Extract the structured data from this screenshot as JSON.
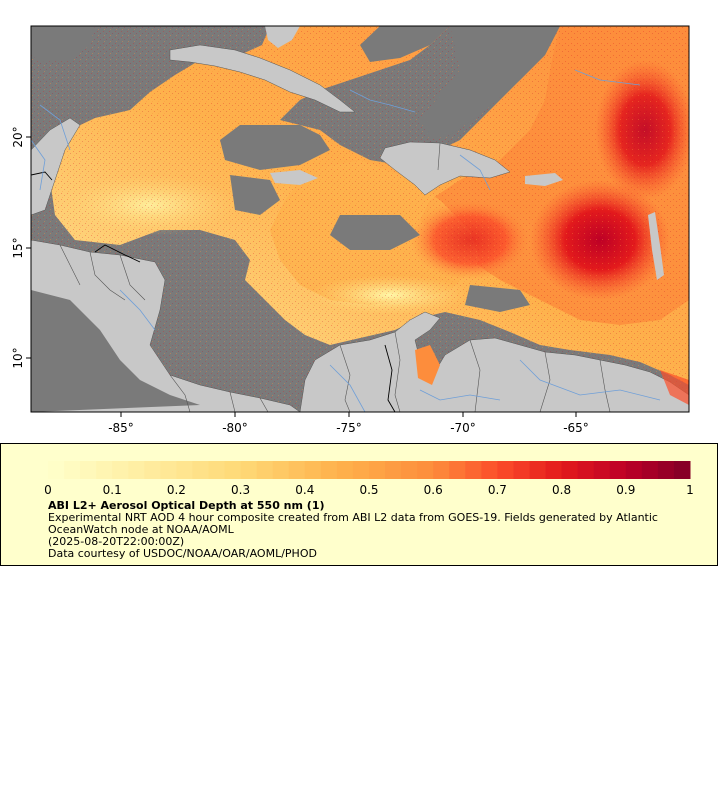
{
  "map": {
    "lon_ticks": [
      "-85°",
      "-80°",
      "-75°",
      "-70°",
      "-65°"
    ],
    "lat_ticks": [
      "20°",
      "15°",
      "10°"
    ],
    "colors": {
      "ocean_nodata": "#7a7a7a",
      "land": "#c8c8c8",
      "rivers": "#6f9fd8",
      "borders": "#555555",
      "aod_low": "#ffffcc",
      "aod_mid": "#fd8d3c",
      "aod_high": "#800026"
    }
  },
  "legend": {
    "colorbar_ticks": [
      "0",
      "0.1",
      "0.2",
      "0.3",
      "0.4",
      "0.5",
      "0.6",
      "0.7",
      "0.8",
      "0.9",
      "1"
    ],
    "colorbar_min": 0,
    "colorbar_max": 1,
    "title": "ABI L2+ Aerosol Optical Depth at 550 nm (1)",
    "description": "Experimental NRT AOD 4 hour composite created from ABI L2 data from GOES-19. Fields generated by Atlantic OceanWatch node at NOAA/AOML",
    "timestamp": "(2025-08-20T22:00:00Z)",
    "credit": "Data courtesy of USDOC/NOAA/OAR/AOML/PHOD"
  }
}
